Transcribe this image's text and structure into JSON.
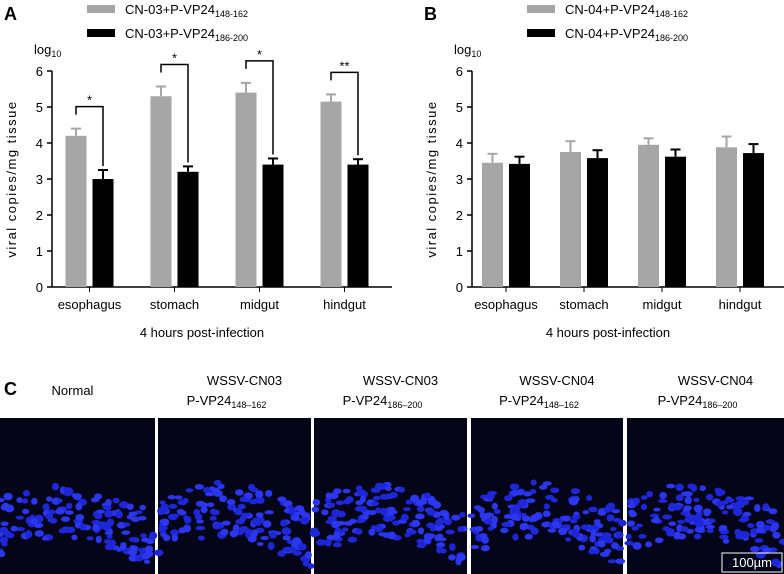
{
  "chart_data": [
    {
      "type": "bar",
      "panel": "A",
      "y_label": "viral copies/mg tissue",
      "y_unit": "log",
      "y_unit_subscript": "10",
      "x_label": "4 hours post-infection",
      "categories": [
        "esophagus",
        "stomach",
        "midgut",
        "hindgut"
      ],
      "series": [
        {
          "name": "CN-03+P-VP24",
          "subscript": "148-162",
          "color": "#a6a6a6",
          "values": [
            4.2,
            5.3,
            5.4,
            5.15
          ],
          "errors": [
            0.2,
            0.27,
            0.27,
            0.2
          ]
        },
        {
          "name": "CN-03+P-VP24",
          "subscript": "186-200",
          "color": "#000000",
          "values": [
            3.0,
            3.2,
            3.4,
            3.4
          ],
          "errors": [
            0.25,
            0.15,
            0.17,
            0.15
          ]
        }
      ],
      "significance": [
        "*",
        "*",
        "*",
        "**"
      ],
      "ylim": [
        0,
        6
      ],
      "yticks": [
        0,
        1,
        2,
        3,
        4,
        5,
        6
      ]
    },
    {
      "type": "bar",
      "panel": "B",
      "y_label": "viral copies/mg tissue",
      "y_unit": "log",
      "y_unit_subscript": "10",
      "x_label": "4 hours post-infection",
      "categories": [
        "esophagus",
        "stomach",
        "midgut",
        "hindgut"
      ],
      "series": [
        {
          "name": "CN-04+P-VP24",
          "subscript": "148-162",
          "color": "#a6a6a6",
          "values": [
            3.45,
            3.75,
            3.95,
            3.88
          ],
          "errors": [
            0.25,
            0.3,
            0.18,
            0.3
          ]
        },
        {
          "name": "CN-04+P-VP24",
          "subscript": "186-200",
          "color": "#000000",
          "values": [
            3.42,
            3.58,
            3.62,
            3.72
          ],
          "errors": [
            0.2,
            0.22,
            0.2,
            0.25
          ]
        }
      ],
      "ylim": [
        0,
        6
      ],
      "yticks": [
        0,
        1,
        2,
        3,
        4,
        5,
        6
      ]
    }
  ],
  "panel_c": {
    "label": "C",
    "scale_bar": "100µm",
    "images": [
      {
        "line1": "Normal"
      },
      {
        "line1": "WSSV-CN03",
        "line2": "P-VP24",
        "line2_sub": "148–162"
      },
      {
        "line1": "WSSV-CN03",
        "line2": "P-VP24",
        "line2_sub": "186–200"
      },
      {
        "line1": "WSSV-CN04",
        "line2": "P-VP24",
        "line2_sub": "148–162"
      },
      {
        "line1": "WSSV-CN04",
        "line2": "P-VP24",
        "line2_sub": "186–200"
      }
    ]
  }
}
